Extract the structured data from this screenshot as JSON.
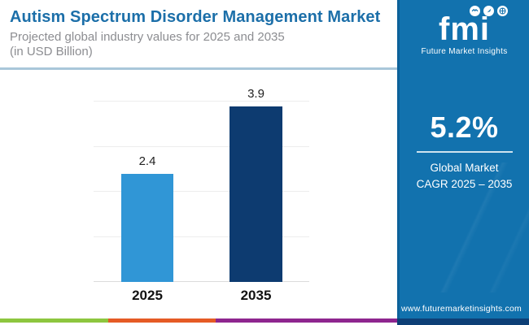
{
  "header": {
    "title": "Autism Spectrum Disorder Management Market",
    "subtitle_line1": "Projected global industry values for 2025 and 2035",
    "subtitle_line2": "(in USD Billion)"
  },
  "chart_data": {
    "type": "bar",
    "title": "Autism Spectrum Disorder Management Market",
    "subtitle": "Projected global industry values for 2025 and 2035 (in USD Billion)",
    "unit": "USD Billion",
    "categories": [
      "2025",
      "2035"
    ],
    "values": [
      2.4,
      3.9
    ],
    "value_labels": [
      "2.4",
      "3.9"
    ],
    "bar_colors": [
      "#3096D6",
      "#0D3B70"
    ],
    "ylim": [
      0,
      4
    ],
    "grid_step": 1,
    "grid": true,
    "legend": false,
    "xlabel": "",
    "ylabel": ""
  },
  "panel": {
    "logo": {
      "brand": "fmi",
      "name": "Future Market Insights",
      "icons": [
        "handshake-icon",
        "rocket-icon",
        "globe-icon"
      ]
    },
    "cagr": {
      "value": "5.2%",
      "label_line1": "Global Market",
      "label_line2": "CAGR 2025 – 2035"
    },
    "website": "www.futuremarketinsights.com"
  },
  "colors": {
    "title_blue": "#1C6FA9",
    "subtitle_gray": "#8C8D91",
    "divider_blue": "#A9C7DA",
    "grid_gray": "#EDEDED",
    "baseline_gray": "#DCDCDC",
    "panel_bg": "#1272AE",
    "panel_edge": "#0C619A",
    "strip_green": "#8DC63F",
    "strip_orange": "#E55B25",
    "strip_purple": "#8E268F",
    "strip_navy": "#0D3F76"
  }
}
